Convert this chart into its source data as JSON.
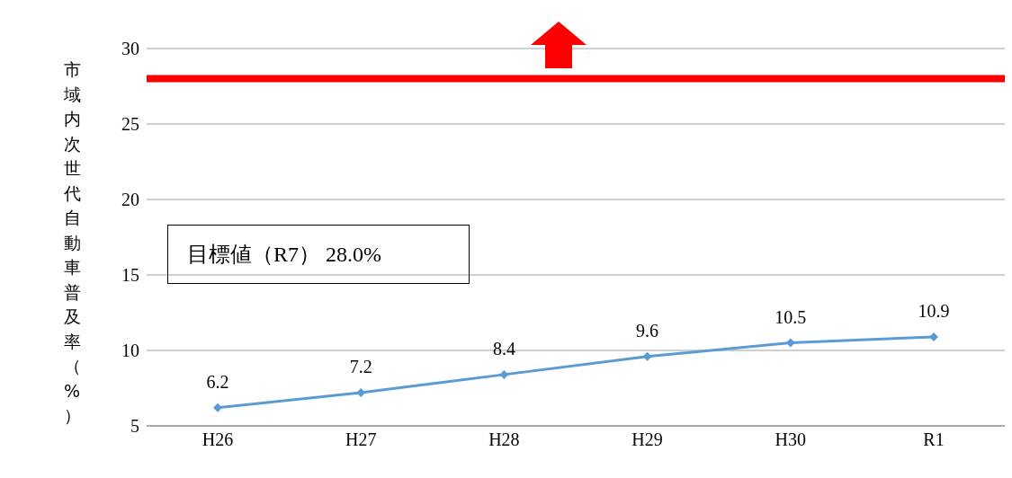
{
  "chart_data": {
    "type": "line",
    "ylabel": "市域内次世代自動車普及率（%）",
    "categories": [
      "H26",
      "H27",
      "H28",
      "H29",
      "H30",
      "R1"
    ],
    "series": [
      {
        "color": "#5b9bd5",
        "values": [
          6.2,
          7.2,
          8.4,
          9.6,
          10.5,
          10.9
        ]
      }
    ],
    "ylim": [
      5,
      30
    ],
    "yticks": [
      5,
      10,
      15,
      20,
      25,
      30
    ],
    "grid": "y",
    "marker": "diamond",
    "data_labels": true,
    "ref_lines": [
      {
        "axis": "y",
        "value": 28,
        "color": "#ff0000"
      }
    ],
    "annotations": [
      "目標値（R7） 28.0%"
    ]
  }
}
